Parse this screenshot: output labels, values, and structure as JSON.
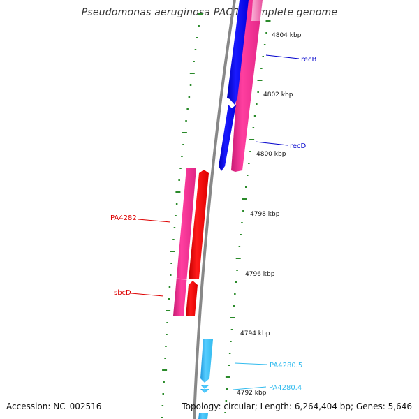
{
  "title": "Pseudomonas aeruginosa PAO1, complete genome",
  "footer": {
    "accession": "Accession: NC_002516",
    "topology": "Topology: circular; Length: 6,264,404 bp; Genes: 5,646"
  },
  "colors": {
    "backbone": "#888888",
    "tick": "#2a8a2a",
    "magenta_gene": "#ee2b8c",
    "blue_gene": "#0000ee",
    "red_gene": "#ee0000",
    "cyan_gene": "#33bbee"
  },
  "kbp_labels": [
    "4804 kbp",
    "4802 kbp",
    "4800 kbp",
    "4798 kbp",
    "4796 kbp",
    "4794 kbp",
    "4792 kbp"
  ],
  "genes": [
    {
      "id": "recB",
      "label": "recB",
      "color": "#0000cc"
    },
    {
      "id": "recD",
      "label": "recD",
      "color": "#0000cc"
    },
    {
      "id": "PA4282",
      "label": "PA4282",
      "color": "#dd0000"
    },
    {
      "id": "sbcD",
      "label": "sbcD",
      "color": "#dd0000"
    },
    {
      "id": "PA4280.5",
      "label": "PA4280.5",
      "color": "#33bbee"
    },
    {
      "id": "PA4280.4",
      "label": "PA4280.4",
      "color": "#33bbee"
    }
  ]
}
